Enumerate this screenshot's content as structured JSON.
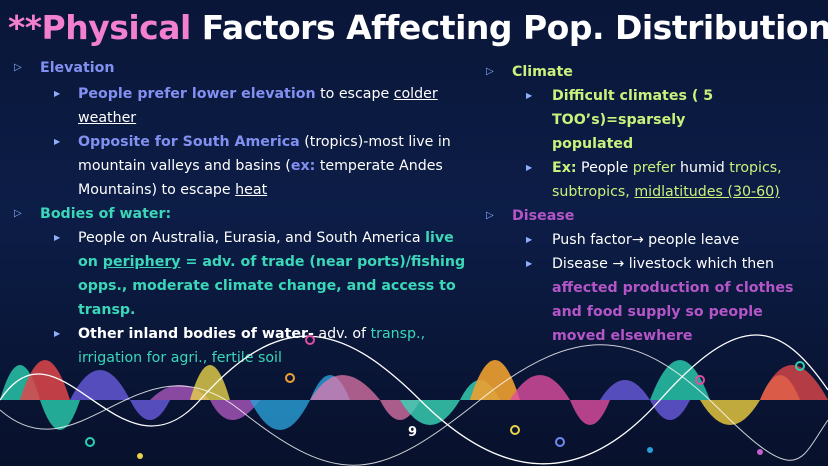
{
  "title": {
    "prefix": "**",
    "highlight": "Physical",
    "rest": " Factors Affecting Pop. Distribution"
  },
  "left": {
    "elevation": {
      "heading": "Elevation",
      "b1": {
        "bold": "People prefer lower elevation",
        "t1": " to escape ",
        "u1": "colder weather"
      },
      "b2": {
        "bold": "Opposite for South America",
        "t1": " (tropics)-most live in mountain valleys and basins (",
        "ex": "ex:",
        "t2": " temperate Andes Mountains) to escape ",
        "u1": "heat"
      }
    },
    "water": {
      "heading": "Bodies of water:",
      "b1": {
        "t1": "People on Australia, Eurasia, and South America ",
        "bold1": "live on ",
        "u1": "periphery",
        "bold2": " = adv. of trade (near ports)/fishing opps., moderate climate change, and access to transp."
      },
      "b2": {
        "bold": "Other inland bodies of water-",
        "t1": " adv. of ",
        "teal": "transp., irrigation for agri., fertile soil"
      }
    }
  },
  "right": {
    "climate": {
      "heading": "Climate",
      "b1": "Difficult climates ( 5 TOO’s)=sparsely populated",
      "b2": {
        "ex": "Ex:",
        "t1": " People ",
        "g1": "prefer",
        "t2": " humid ",
        "g2": "tropics, subtropics, ",
        "u1": "midlatitudes (30-60)"
      }
    },
    "disease": {
      "heading": "Disease",
      "b1": "Push factor→ people leave",
      "b2": {
        "t1": "Disease → livestock which then ",
        "bold": "affected production of clothes and food supply so people moved elsewhere"
      }
    }
  },
  "page_number": "9",
  "colors": {
    "pink": "#f27fd0",
    "blue": "#8290f2",
    "teal": "#3ad7b8",
    "lime": "#c8f27c",
    "purple": "#b455c8"
  }
}
